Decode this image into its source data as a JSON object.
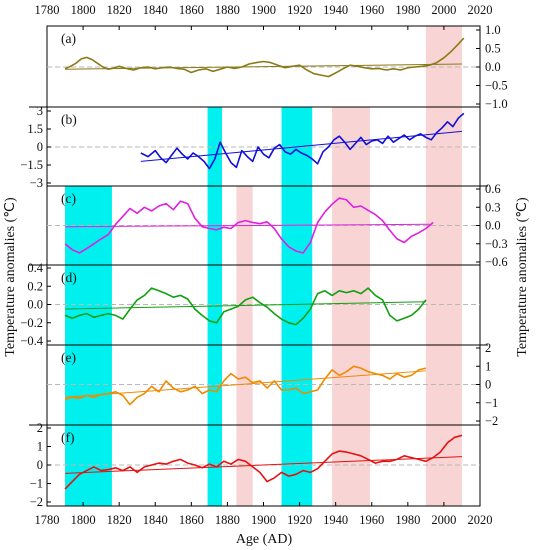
{
  "chart_data": {
    "type": "line",
    "xlabel": "Age (AD)",
    "ylabel_left": "Temperature anomalies (℃)",
    "ylabel_right": "Temperature anomalies (℃)",
    "xlim": [
      1780,
      2020
    ],
    "xticks": [
      1780,
      1800,
      1820,
      1840,
      1860,
      1880,
      1900,
      1920,
      1940,
      1960,
      1980,
      2000,
      2020
    ],
    "highlight_bands": [
      {
        "kind": "cold",
        "color": "#00f0f0",
        "from": 1790,
        "to": 1816,
        "panels": [
          "c",
          "d",
          "e",
          "f"
        ]
      },
      {
        "kind": "cold",
        "color": "#00f0f0",
        "from": 1869,
        "to": 1877,
        "panels": [
          "b",
          "c",
          "d",
          "e",
          "f"
        ]
      },
      {
        "kind": "cold",
        "color": "#00f0f0",
        "from": 1910,
        "to": 1927,
        "panels": [
          "b",
          "c",
          "d",
          "e",
          "f"
        ]
      },
      {
        "kind": "warm",
        "color": "#f9d4d4",
        "from": 1885,
        "to": 1894,
        "panels": [
          "c",
          "d",
          "e",
          "f"
        ]
      },
      {
        "kind": "warm",
        "color": "#f9d4d4",
        "from": 1938,
        "to": 1959,
        "panels": [
          "b",
          "c",
          "d",
          "e",
          "f"
        ]
      },
      {
        "kind": "warm",
        "color": "#f9d4d4",
        "from": 1990,
        "to": 2010,
        "panels": [
          "a",
          "b",
          "c",
          "d",
          "e",
          "f"
        ]
      }
    ],
    "panels": [
      {
        "label": "(a)",
        "color": "#8a7a16",
        "axis_side": "right",
        "ylim": [
          -1.0,
          1.0
        ],
        "yticks": [
          -1.0,
          -0.5,
          0.0,
          0.5,
          1.0
        ],
        "x": [
          1790,
          1793,
          1796,
          1799,
          1802,
          1805,
          1808,
          1811,
          1814,
          1817,
          1820,
          1824,
          1828,
          1832,
          1836,
          1840,
          1844,
          1848,
          1852,
          1856,
          1860,
          1864,
          1868,
          1872,
          1876,
          1880,
          1884,
          1888,
          1892,
          1896,
          1900,
          1904,
          1908,
          1912,
          1916,
          1920,
          1924,
          1928,
          1932,
          1936,
          1940,
          1944,
          1948,
          1952,
          1956,
          1960,
          1964,
          1968,
          1972,
          1976,
          1980,
          1984,
          1988,
          1992,
          1996,
          2000,
          2004,
          2008,
          2011
        ],
        "values": [
          -0.05,
          0.02,
          0.1,
          0.22,
          0.26,
          0.2,
          0.1,
          0.0,
          -0.06,
          -0.03,
          0.02,
          -0.04,
          -0.08,
          -0.02,
          0.0,
          -0.05,
          -0.02,
          0.0,
          -0.04,
          -0.06,
          -0.15,
          -0.08,
          -0.05,
          -0.12,
          -0.06,
          0.0,
          -0.04,
          0.0,
          0.08,
          0.12,
          0.15,
          0.12,
          0.05,
          -0.02,
          0.02,
          0.05,
          -0.08,
          -0.18,
          -0.22,
          -0.26,
          -0.16,
          -0.05,
          0.05,
          0.02,
          -0.02,
          -0.05,
          -0.04,
          -0.08,
          -0.05,
          -0.08,
          -0.02,
          0.0,
          0.02,
          0.05,
          0.12,
          0.25,
          0.42,
          0.62,
          0.78
        ],
        "trend": {
          "x": [
            1790,
            2010
          ],
          "values": [
            -0.06,
            0.08
          ]
        }
      },
      {
        "label": "(b)",
        "color": "#1010d8",
        "axis_side": "left",
        "ylim": [
          -3.0,
          3.0
        ],
        "yticks": [
          -3.0,
          -1.5,
          0.0,
          1.5,
          3.0
        ],
        "x": [
          1832,
          1836,
          1840,
          1843,
          1846,
          1849,
          1852,
          1855,
          1858,
          1861,
          1864,
          1867,
          1870,
          1873,
          1876,
          1879,
          1882,
          1885,
          1888,
          1891,
          1894,
          1897,
          1900,
          1903,
          1906,
          1909,
          1912,
          1915,
          1918,
          1921,
          1924,
          1927,
          1930,
          1933,
          1936,
          1939,
          1942,
          1945,
          1948,
          1951,
          1954,
          1957,
          1960,
          1963,
          1966,
          1969,
          1972,
          1975,
          1978,
          1981,
          1984,
          1987,
          1990,
          1993,
          1996,
          1999,
          2002,
          2005,
          2008,
          2011
        ],
        "values": [
          -0.5,
          -0.8,
          -0.3,
          -0.9,
          -1.3,
          -0.7,
          -0.1,
          -0.6,
          -1.0,
          -0.5,
          -0.8,
          -1.2,
          -1.8,
          -1.0,
          0.4,
          -0.5,
          -1.3,
          -1.7,
          -0.3,
          -0.8,
          -1.2,
          0.0,
          -0.6,
          -0.9,
          -0.1,
          0.2,
          -0.4,
          -0.6,
          -0.2,
          -0.5,
          -0.7,
          -1.0,
          -1.4,
          -0.4,
          0.0,
          0.6,
          0.9,
          0.4,
          -0.2,
          0.3,
          0.8,
          0.2,
          0.5,
          0.6,
          0.3,
          0.9,
          0.4,
          0.7,
          1.0,
          0.6,
          0.9,
          1.1,
          0.8,
          0.6,
          1.2,
          1.6,
          2.1,
          1.7,
          2.4,
          2.8
        ],
        "trend": {
          "x": [
            1832,
            2010
          ],
          "values": [
            -1.2,
            1.3
          ]
        }
      },
      {
        "label": "(c)",
        "color": "#e020e0",
        "axis_side": "right",
        "ylim": [
          -0.6,
          0.6
        ],
        "yticks": [
          -0.6,
          -0.3,
          0.0,
          0.3,
          0.6
        ],
        "x": [
          1790,
          1794,
          1798,
          1802,
          1806,
          1810,
          1814,
          1818,
          1822,
          1826,
          1830,
          1834,
          1838,
          1842,
          1846,
          1850,
          1854,
          1858,
          1862,
          1866,
          1870,
          1874,
          1878,
          1882,
          1886,
          1890,
          1894,
          1898,
          1902,
          1906,
          1910,
          1914,
          1918,
          1922,
          1926,
          1930,
          1934,
          1938,
          1942,
          1946,
          1950,
          1954,
          1958,
          1962,
          1966,
          1970,
          1974,
          1978,
          1982,
          1986,
          1990,
          1994
        ],
        "values": [
          -0.3,
          -0.4,
          -0.45,
          -0.38,
          -0.3,
          -0.22,
          -0.15,
          0.02,
          0.15,
          0.28,
          0.2,
          0.3,
          0.24,
          0.32,
          0.36,
          0.26,
          0.4,
          0.36,
          0.12,
          -0.02,
          -0.05,
          -0.07,
          -0.03,
          -0.05,
          0.05,
          0.08,
          0.05,
          0.03,
          0.06,
          -0.05,
          -0.22,
          -0.35,
          -0.42,
          -0.45,
          -0.28,
          0.05,
          0.22,
          0.35,
          0.45,
          0.42,
          0.3,
          0.32,
          0.25,
          0.18,
          0.08,
          -0.08,
          -0.22,
          -0.28,
          -0.18,
          -0.12,
          -0.05,
          0.05
        ],
        "trend": {
          "x": [
            1790,
            1992
          ],
          "values": [
            -0.02,
            0.02
          ]
        }
      },
      {
        "label": "(d)",
        "color": "#10a010",
        "axis_side": "left",
        "ylim": [
          -0.4,
          0.4
        ],
        "yticks": [
          -0.4,
          -0.2,
          0.0,
          0.2,
          0.4
        ],
        "x": [
          1790,
          1794,
          1798,
          1802,
          1806,
          1810,
          1814,
          1818,
          1822,
          1826,
          1830,
          1834,
          1838,
          1842,
          1846,
          1850,
          1854,
          1858,
          1862,
          1866,
          1870,
          1874,
          1878,
          1882,
          1886,
          1890,
          1894,
          1898,
          1902,
          1906,
          1910,
          1914,
          1918,
          1922,
          1926,
          1930,
          1934,
          1938,
          1942,
          1946,
          1950,
          1954,
          1958,
          1962,
          1966,
          1970,
          1974,
          1978,
          1982,
          1986,
          1990
        ],
        "values": [
          -0.12,
          -0.15,
          -0.12,
          -0.1,
          -0.14,
          -0.12,
          -0.1,
          -0.12,
          -0.16,
          -0.05,
          0.05,
          0.1,
          0.18,
          0.15,
          0.12,
          0.08,
          0.1,
          0.06,
          -0.05,
          -0.12,
          -0.18,
          -0.2,
          -0.08,
          -0.05,
          -0.02,
          0.05,
          0.08,
          0.02,
          -0.03,
          -0.1,
          -0.16,
          -0.2,
          -0.22,
          -0.15,
          -0.05,
          0.12,
          0.15,
          0.1,
          0.15,
          0.13,
          0.15,
          0.12,
          0.18,
          0.1,
          0.05,
          -0.12,
          -0.18,
          -0.15,
          -0.12,
          -0.05,
          0.05
        ],
        "trend": {
          "x": [
            1790,
            1990
          ],
          "values": [
            -0.05,
            0.03
          ]
        }
      },
      {
        "label": "(e)",
        "color": "#f08a00",
        "axis_side": "right",
        "ylim": [
          -2,
          2
        ],
        "yticks": [
          -2,
          -1,
          0,
          1,
          2
        ],
        "x": [
          1790,
          1794,
          1798,
          1802,
          1806,
          1810,
          1814,
          1818,
          1822,
          1826,
          1830,
          1834,
          1838,
          1842,
          1846,
          1850,
          1854,
          1858,
          1862,
          1866,
          1870,
          1874,
          1878,
          1882,
          1886,
          1890,
          1894,
          1898,
          1902,
          1906,
          1910,
          1914,
          1918,
          1922,
          1926,
          1930,
          1934,
          1938,
          1942,
          1946,
          1950,
          1954,
          1958,
          1962,
          1966,
          1970,
          1974,
          1978,
          1982,
          1986,
          1990
        ],
        "values": [
          -0.8,
          -0.7,
          -0.75,
          -0.6,
          -0.7,
          -0.55,
          -0.5,
          -0.4,
          -0.6,
          -1.1,
          -0.7,
          -0.5,
          -0.1,
          -0.4,
          0.2,
          -0.2,
          -0.4,
          -0.3,
          -0.1,
          -0.5,
          -0.3,
          -0.4,
          0.2,
          0.6,
          0.3,
          0.4,
          0.1,
          0.2,
          -0.2,
          0.2,
          -0.3,
          -0.3,
          -0.2,
          -0.5,
          -0.4,
          -0.3,
          0.3,
          0.8,
          0.5,
          0.7,
          1.0,
          0.9,
          0.7,
          0.6,
          0.5,
          0.3,
          0.6,
          0.4,
          0.5,
          0.8,
          0.9
        ],
        "trend": {
          "x": [
            1790,
            1990
          ],
          "values": [
            -0.7,
            0.75
          ]
        }
      },
      {
        "label": "(f)",
        "color": "#e81010",
        "axis_side": "left",
        "ylim": [
          -2,
          2
        ],
        "yticks": [
          -2,
          -1,
          0,
          1,
          2
        ],
        "x": [
          1790,
          1794,
          1798,
          1802,
          1806,
          1810,
          1814,
          1818,
          1822,
          1826,
          1830,
          1834,
          1838,
          1842,
          1846,
          1850,
          1854,
          1858,
          1862,
          1866,
          1870,
          1874,
          1878,
          1882,
          1886,
          1890,
          1894,
          1898,
          1902,
          1906,
          1910,
          1914,
          1918,
          1922,
          1926,
          1930,
          1934,
          1938,
          1942,
          1946,
          1950,
          1954,
          1958,
          1962,
          1966,
          1970,
          1974,
          1978,
          1982,
          1986,
          1990,
          1994,
          1998,
          2002,
          2006,
          2010
        ],
        "values": [
          -1.3,
          -0.9,
          -0.5,
          -0.3,
          -0.1,
          -0.3,
          -0.25,
          -0.15,
          -0.3,
          -0.1,
          -0.4,
          -0.1,
          0.0,
          0.1,
          0.05,
          0.2,
          0.3,
          0.1,
          0.0,
          -0.15,
          0.05,
          -0.1,
          0.2,
          0.05,
          0.3,
          0.2,
          -0.1,
          -0.4,
          -0.9,
          -0.7,
          -0.4,
          -0.6,
          -0.5,
          -0.3,
          -0.4,
          -0.2,
          0.2,
          0.6,
          0.75,
          0.7,
          0.6,
          0.5,
          0.3,
          0.1,
          0.2,
          0.2,
          0.3,
          0.5,
          0.4,
          0.3,
          0.2,
          0.4,
          0.7,
          1.2,
          1.5,
          1.6
        ],
        "trend": {
          "x": [
            1790,
            2010
          ],
          "values": [
            -0.45,
            0.45
          ]
        }
      }
    ]
  }
}
